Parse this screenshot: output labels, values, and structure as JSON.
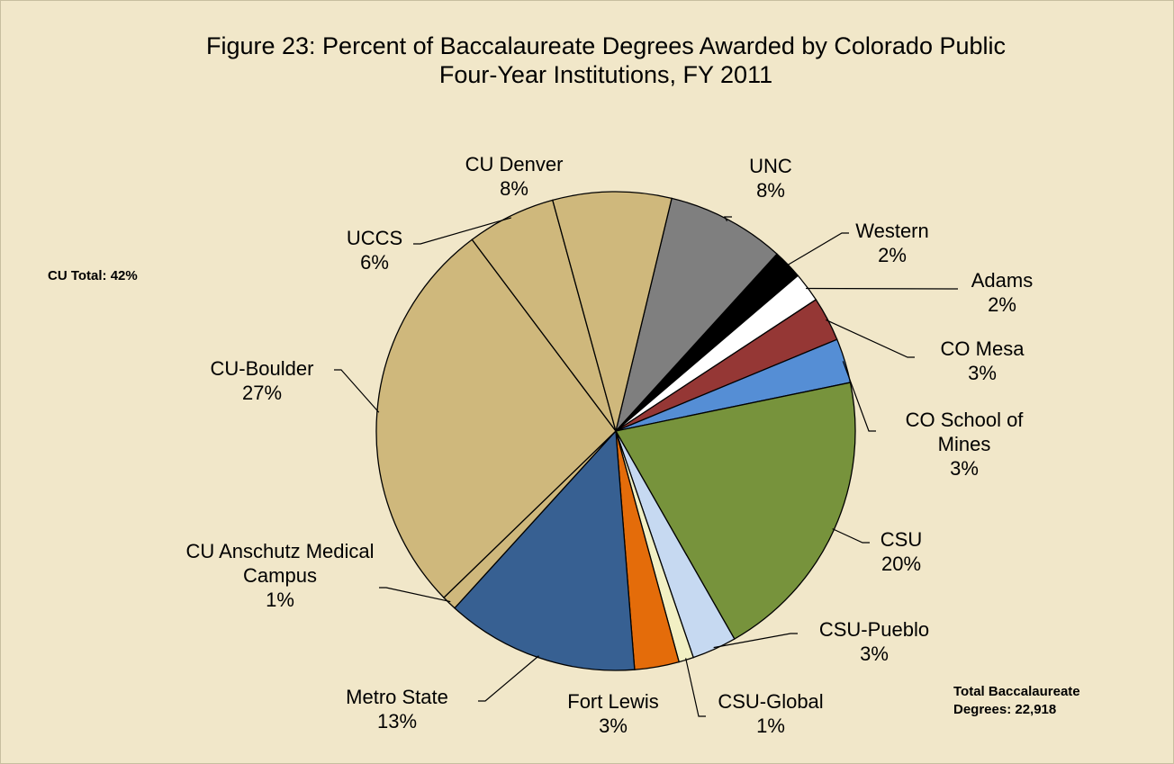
{
  "chart_data": {
    "type": "pie",
    "title": "Figure 23:  Percent of Baccalaureate Degrees Awarded by Colorado Public Four-Year Institutions, FY 2011",
    "annotations": [
      "CU Total:  42%",
      "Total Baccalaureate Degrees:  22,918"
    ],
    "categories": [
      "UNC",
      "Western",
      "Adams",
      "CO Mesa",
      "CO School of Mines",
      "CSU",
      "CSU-Pueblo",
      "CSU-Global",
      "Fort Lewis",
      "Metro State",
      "CU Anschutz Medical Campus",
      "CU-Boulder",
      "UCCS",
      "CU Denver"
    ],
    "values": [
      8,
      2,
      2,
      3,
      3,
      20,
      3,
      1,
      3,
      13,
      1,
      27,
      6,
      8
    ],
    "value_labels": [
      "8%",
      "2%",
      "2%",
      "3%",
      "3%",
      "20%",
      "3%",
      "1%",
      "3%",
      "13%",
      "1%",
      "27%",
      "6%",
      "8%"
    ],
    "colors": [
      "#7f7f7f",
      "#000000",
      "#ffffff",
      "#953735",
      "#558ed5",
      "#77933c",
      "#c6d9f1",
      "#f2f0c4",
      "#e46c0a",
      "#376092",
      "#cfb87c",
      "#cfb87c",
      "#cfb87c",
      "#cfb87c"
    ]
  }
}
